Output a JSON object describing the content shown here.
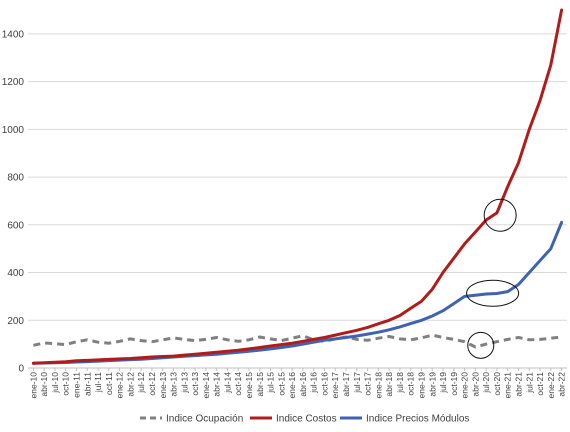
{
  "chart_data": {
    "type": "line",
    "title": "",
    "xlabel": "",
    "ylabel": "",
    "ylim": [
      0,
      1500
    ],
    "yticks": [
      0,
      200,
      400,
      600,
      800,
      1000,
      1200,
      1400
    ],
    "grid": "horizontal",
    "legend_position": "bottom",
    "x_tick_labels": [
      "ene-10",
      "abr-10",
      "jul-10",
      "oct-10",
      "ene-11",
      "abr-11",
      "jul-11",
      "oct-11",
      "ene-12",
      "abr-12",
      "jul-12",
      "oct-12",
      "ene-13",
      "abr-13",
      "jul-13",
      "oct-13",
      "ene-14",
      "abr-14",
      "jul-14",
      "oct-14",
      "ene-15",
      "abr-15",
      "jul-15",
      "oct-15",
      "ene-16",
      "abr-16",
      "jul-16",
      "oct-16",
      "ene-17",
      "abr-17",
      "jul-17",
      "oct-17",
      "ene-18",
      "abr-18",
      "jul-18",
      "oct-18",
      "ene-19",
      "abr-19",
      "jul-19",
      "oct-19",
      "ene-20",
      "abr-20",
      "jul-20",
      "oct-20",
      "ene-21",
      "abr-21",
      "jul-21",
      "oct-21",
      "ene-22",
      "abr-22"
    ],
    "series": [
      {
        "name": "Indice Ocupación",
        "color": "#808080",
        "style": "dashed",
        "values": [
          95,
          105,
          102,
          98,
          110,
          118,
          108,
          104,
          112,
          122,
          115,
          110,
          118,
          126,
          120,
          115,
          120,
          128,
          118,
          112,
          118,
          130,
          122,
          115,
          125,
          135,
          118,
          112,
          122,
          130,
          120,
          116,
          125,
          132,
          122,
          118,
          126,
          138,
          128,
          120,
          110,
          88,
          100,
          110,
          120,
          128,
          118,
          120,
          125,
          130
        ]
      },
      {
        "name": "Indice Costos",
        "color": "#b01c1c",
        "style": "solid",
        "values": [
          20,
          22,
          24,
          26,
          30,
          32,
          34,
          36,
          38,
          40,
          43,
          46,
          48,
          50,
          54,
          58,
          62,
          66,
          70,
          74,
          80,
          86,
          92,
          98,
          104,
          112,
          120,
          128,
          138,
          148,
          158,
          170,
          185,
          200,
          220,
          250,
          280,
          330,
          400,
          460,
          520,
          570,
          620,
          650,
          760,
          860,
          1000,
          1120,
          1270,
          1500
        ]
      },
      {
        "name": "Indice Precios Módulos",
        "color": "#3f63b0",
        "style": "solid",
        "values": [
          20,
          21,
          22,
          23,
          25,
          27,
          29,
          31,
          33,
          35,
          37,
          40,
          43,
          46,
          49,
          52,
          55,
          58,
          62,
          66,
          70,
          75,
          80,
          86,
          92,
          100,
          108,
          116,
          122,
          128,
          134,
          142,
          150,
          160,
          172,
          186,
          200,
          218,
          240,
          270,
          300,
          305,
          310,
          312,
          320,
          350,
          400,
          450,
          500,
          610
        ]
      }
    ],
    "annotations": [
      {
        "shape": "ellipse",
        "label": ""
      },
      {
        "shape": "ellipse",
        "label": ""
      },
      {
        "shape": "ellipse",
        "label": ""
      }
    ]
  }
}
